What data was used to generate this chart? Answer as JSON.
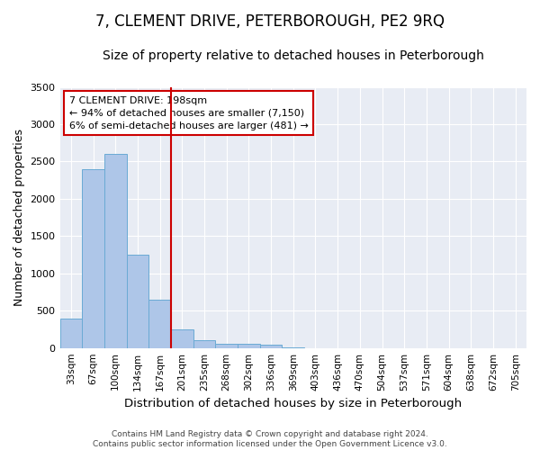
{
  "title": "7, CLEMENT DRIVE, PETERBOROUGH, PE2 9RQ",
  "subtitle": "Size of property relative to detached houses in Peterborough",
  "xlabel": "Distribution of detached houses by size in Peterborough",
  "ylabel": "Number of detached properties",
  "categories": [
    "33sqm",
    "67sqm",
    "100sqm",
    "134sqm",
    "167sqm",
    "201sqm",
    "235sqm",
    "268sqm",
    "302sqm",
    "336sqm",
    "369sqm",
    "403sqm",
    "436sqm",
    "470sqm",
    "504sqm",
    "537sqm",
    "571sqm",
    "604sqm",
    "638sqm",
    "672sqm",
    "705sqm"
  ],
  "values": [
    400,
    2400,
    2600,
    1250,
    650,
    250,
    100,
    60,
    55,
    40,
    5,
    0,
    0,
    0,
    0,
    0,
    0,
    0,
    0,
    0,
    0
  ],
  "bar_color": "#aec6e8",
  "bar_edge_color": "#6aaad4",
  "vline_x_index": 5,
  "vline_color": "#cc0000",
  "annotation_line1": "7 CLEMENT DRIVE: 198sqm",
  "annotation_line2": "← 94% of detached houses are smaller (7,150)",
  "annotation_line3": "6% of semi-detached houses are larger (481) →",
  "annotation_box_color": "#ffffff",
  "annotation_box_edge_color": "#cc0000",
  "ylim": [
    0,
    3500
  ],
  "yticks": [
    0,
    500,
    1000,
    1500,
    2000,
    2500,
    3000,
    3500
  ],
  "background_color": "#e8ecf4",
  "footer": "Contains HM Land Registry data © Crown copyright and database right 2024.\nContains public sector information licensed under the Open Government Licence v3.0.",
  "title_fontsize": 12,
  "subtitle_fontsize": 10,
  "tick_label_fontsize": 7.5,
  "ylabel_fontsize": 9,
  "xlabel_fontsize": 9.5
}
